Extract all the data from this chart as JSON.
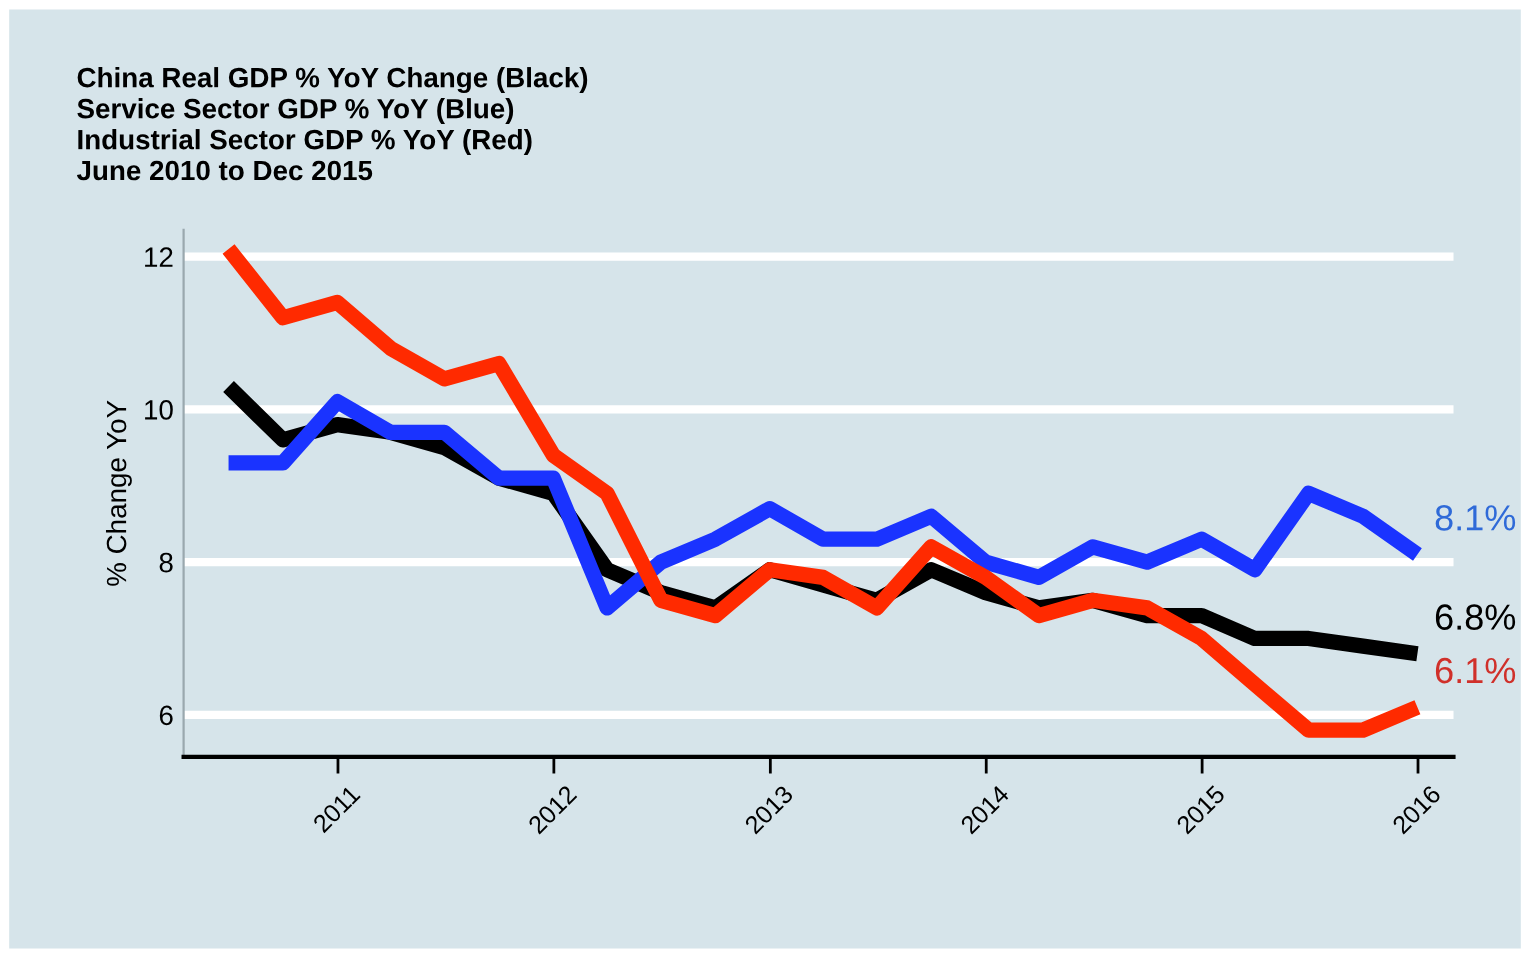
{
  "chart_data": {
    "type": "line",
    "title": "China Real GDP % YoY Change (Black)\nService Sector GDP % YoY (Blue)\nIndustrial Sector GDP % YoY (Red)\nJune 2010 to Dec 2015",
    "ylabel": "% Change YoY",
    "x": [
      "2010-06-30",
      "2010-09-30",
      "2010-12-31",
      "2011-03-31",
      "2011-06-30",
      "2011-09-30",
      "2011-12-31",
      "2012-03-31",
      "2012-06-30",
      "2012-09-30",
      "2012-12-31",
      "2013-03-31",
      "2013-06-30",
      "2013-09-30",
      "2013-12-31",
      "2014-03-31",
      "2014-06-30",
      "2014-09-30",
      "2014-12-31",
      "2015-03-31",
      "2015-06-30",
      "2015-09-30",
      "2015-12-31"
    ],
    "series": [
      {
        "color": "#000000",
        "values": [
          10.3,
          9.6,
          9.8,
          9.7,
          9.5,
          9.1,
          8.9,
          7.9,
          7.6,
          7.4,
          7.9,
          7.7,
          7.5,
          7.9,
          7.6,
          7.4,
          7.5,
          7.3,
          7.3,
          7.0,
          7.0,
          6.9,
          6.8
        ]
      },
      {
        "color": "#1a33ff",
        "values": [
          9.3,
          9.3,
          10.1,
          9.7,
          9.7,
          9.1,
          9.1,
          7.4,
          8.0,
          8.3,
          8.7,
          8.3,
          8.3,
          8.6,
          8.0,
          7.8,
          8.2,
          8.0,
          8.3,
          7.9,
          8.9,
          8.6,
          8.1
        ]
      },
      {
        "color": "#ff2a00",
        "values": [
          12.1,
          11.2,
          11.4,
          10.8,
          10.4,
          10.6,
          9.4,
          8.9,
          7.5,
          7.3,
          7.9,
          7.8,
          7.4,
          8.2,
          7.8,
          7.3,
          7.5,
          7.4,
          7.0,
          6.4,
          5.8,
          5.8,
          6.1
        ]
      }
    ],
    "annotations": [
      {
        "text": "6.8%",
        "x": "2015-12-31",
        "y": 6.8
      },
      {
        "text": "8.1%",
        "x": "2015-12-31",
        "y": 8.1
      },
      {
        "text": "6.1%",
        "x": "2015-12-31",
        "y": 6.1
      }
    ],
    "xlim": [
      "2010-04-15",
      "2016-03-01"
    ],
    "xticks": [
      "2011",
      "2012",
      "2013",
      "2014",
      "2015",
      "2016"
    ],
    "ylim": [
      5.45,
      12.35
    ],
    "yticks": [
      6,
      8,
      10,
      12
    ],
    "grid": "y",
    "line_style": "solid",
    "marker": "none"
  }
}
